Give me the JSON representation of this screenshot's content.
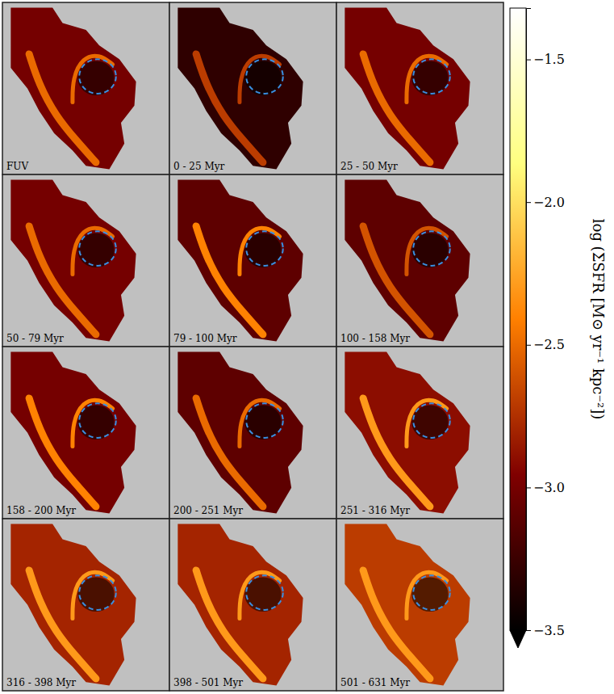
{
  "chart_data": {
    "type": "map",
    "panels": [
      {
        "label": "FUV",
        "disk": -3.0,
        "ring": -2.5
      },
      {
        "label": "0 - 25 Myr",
        "disk": -3.3,
        "ring": -2.7
      },
      {
        "label": "25 - 50 Myr",
        "disk": -3.0,
        "ring": -2.5
      },
      {
        "label": "50 - 79 Myr",
        "disk": -3.0,
        "ring": -2.5
      },
      {
        "label": "79 - 100 Myr",
        "disk": -3.1,
        "ring": -2.4
      },
      {
        "label": "100 - 158 Myr",
        "disk": -3.1,
        "ring": -2.6
      },
      {
        "label": "158 - 200 Myr",
        "disk": -3.0,
        "ring": -2.4
      },
      {
        "label": "200 - 251 Myr",
        "disk": -3.1,
        "ring": -2.5
      },
      {
        "label": "251 - 316 Myr",
        "disk": -2.9,
        "ring": -2.3
      },
      {
        "label": "316 - 398 Myr",
        "disk": -2.8,
        "ring": -2.3
      },
      {
        "label": "398 - 501 Myr",
        "disk": -2.8,
        "ring": -2.3
      },
      {
        "label": "501 - 631 Myr",
        "disk": -2.7,
        "ring": -2.3
      }
    ],
    "colorbar": {
      "label": "log (ΣSFR [M⊙ yr⁻¹ kpc⁻²])",
      "clim": [
        -3.5,
        -1.32
      ],
      "ticks": [
        {
          "value": -1.5,
          "label": "−1.5"
        },
        {
          "value": -2,
          "label": "−2.0"
        },
        {
          "value": -2.5,
          "label": "−2.5"
        },
        {
          "value": -3,
          "label": "−3.0"
        },
        {
          "value": -3.5,
          "label": "−3.5"
        }
      ]
    }
  }
}
